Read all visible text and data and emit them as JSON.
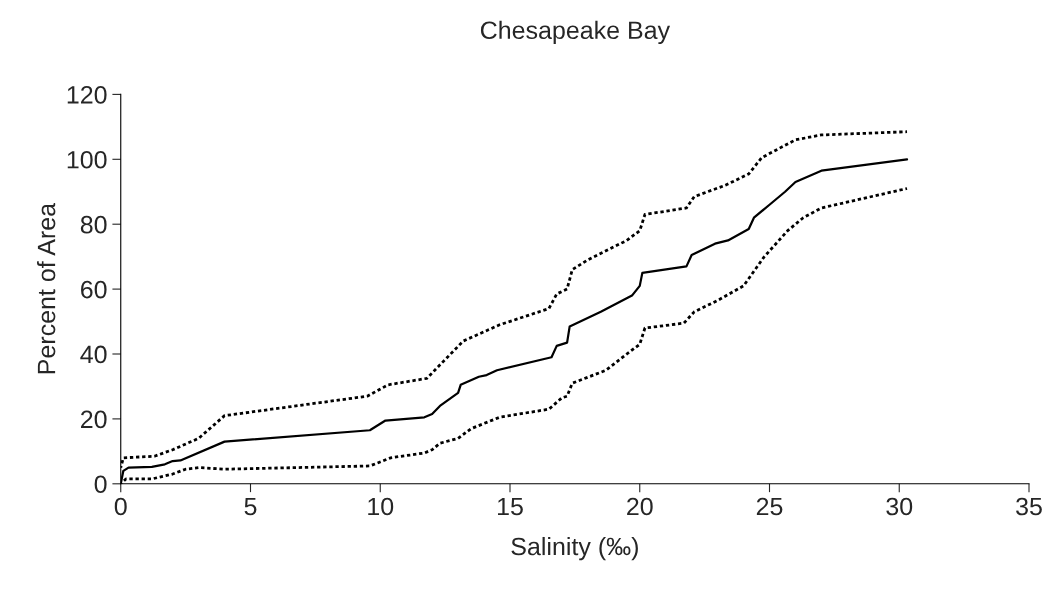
{
  "chart_data": {
    "type": "line",
    "title": "Chesapeake Bay",
    "xlabel": "Salinity (‰)",
    "ylabel": "Percent of Area",
    "xlim": [
      0,
      35
    ],
    "xticks": [
      0,
      5,
      10,
      15,
      20,
      25,
      30,
      35
    ],
    "ylim": [
      0,
      120
    ],
    "yticks": [
      0,
      20,
      40,
      60,
      80,
      100,
      120
    ],
    "grid": false,
    "legend": false,
    "marker": "none",
    "series": [
      {
        "color": "#000000",
        "line_style": "solid",
        "x": [
          0,
          0.1,
          0.3,
          1.2,
          1.7,
          2,
          2.3,
          4,
          9.6,
          10.2,
          11.7,
          12,
          12.3,
          13,
          13.1,
          13.8,
          14.1,
          14.5,
          16.6,
          16.8,
          17.2,
          17.3,
          18.5,
          19.7,
          20,
          20.1,
          21.8,
          22,
          22.9,
          23.4,
          24.2,
          24.4,
          25,
          25.6,
          26,
          27,
          30.3
        ],
        "values": [
          0,
          4,
          5,
          5.2,
          6,
          7,
          7.2,
          13,
          16.5,
          19.5,
          20.5,
          21.5,
          24,
          28,
          30.5,
          33,
          33.5,
          35,
          39,
          42.5,
          43.5,
          48.5,
          53,
          58,
          61,
          65,
          67,
          70.5,
          74,
          75,
          78.5,
          82,
          86,
          90,
          93,
          96.5,
          100
        ]
      },
      {
        "color": "#000000",
        "line_style": "dotted",
        "x": [
          0,
          0.1,
          1.3,
          2,
          3,
          4,
          9.5,
          10.3,
          11.8,
          12.1,
          13.2,
          14.6,
          16.5,
          16.8,
          17.2,
          17.4,
          18,
          19.5,
          20,
          20.2,
          21.8,
          22.1,
          23.3,
          24.2,
          24.7,
          26,
          27,
          30.3
        ],
        "values": [
          5,
          8,
          8.5,
          10.5,
          14,
          21,
          27,
          30.5,
          32.5,
          35,
          44,
          49,
          54,
          58.5,
          60,
          66,
          69,
          75,
          78,
          83,
          85,
          88.5,
          92,
          95.5,
          100.5,
          106,
          107.5,
          108.5
        ]
      },
      {
        "color": "#000000",
        "line_style": "dotted",
        "x": [
          0,
          0.2,
          1.2,
          2,
          2.5,
          3,
          4,
          9.6,
          10.4,
          11.7,
          12,
          12.3,
          13,
          13.5,
          14.6,
          16.5,
          17,
          17.2,
          17.4,
          18.7,
          19.5,
          20,
          20.2,
          21.7,
          22.1,
          23,
          24,
          24.8,
          25.7,
          26.3,
          27,
          30.3
        ],
        "values": [
          0,
          1.5,
          1.5,
          3,
          4.5,
          5,
          4.5,
          5.5,
          8,
          9.5,
          10.5,
          12.5,
          14,
          17,
          20.5,
          23,
          26.5,
          27,
          31,
          35,
          40,
          43,
          48,
          49.5,
          53,
          56.5,
          61,
          70,
          78,
          82,
          85,
          91
        ]
      }
    ]
  }
}
